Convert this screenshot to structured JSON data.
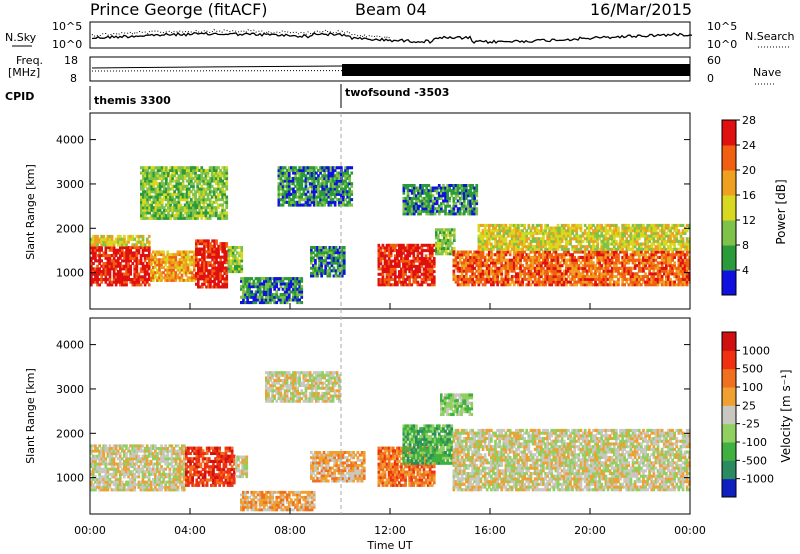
{
  "header": {
    "station": "Prince George (fitACF)",
    "beam": "Beam 04",
    "date": "16/Mar/2015"
  },
  "nsky_panel": {
    "left_label": "N.Sky",
    "left_ticks": [
      "10^5",
      "10^0"
    ],
    "right_ticks": [
      "10^5",
      "10^0"
    ],
    "right_label": "N.Search"
  },
  "freq_panel": {
    "left_label_1": "Freq.",
    "left_label_2": "[MHz]",
    "left_ticks": [
      "18",
      "8"
    ],
    "right_ticks": [
      "60",
      "0"
    ],
    "right_label": "Nave"
  },
  "cpid_panel": {
    "label": "CPID",
    "programs": [
      {
        "name": "themis 3300",
        "start_hour": 0
      },
      {
        "name": "twofsound -3503",
        "start_hour": 10
      }
    ]
  },
  "chart_data": [
    {
      "type": "heatmap",
      "title": "",
      "quantity": "Power",
      "xlabel": "",
      "ylabel": "Slant Range [km]",
      "x_range_hours": [
        0,
        24
      ],
      "ylim": [
        180,
        4600
      ],
      "y_ticks": [
        "1000",
        "2000",
        "3000",
        "4000"
      ],
      "colorbar_label": "Power [dB]",
      "colorbar_ticks": [
        "4",
        "8",
        "12",
        "16",
        "20",
        "24",
        "28"
      ],
      "colorbar_colors": [
        "#1010e0",
        "#2a9a3a",
        "#7fc24a",
        "#d8d820",
        "#f0a020",
        "#f06010",
        "#e01010"
      ],
      "regions": [
        {
          "x0": 0.0,
          "x1": 2.4,
          "y0": 700,
          "y1": 1600,
          "level": 6
        },
        {
          "x0": 0.0,
          "x1": 2.4,
          "y0": 1600,
          "y1": 1850,
          "level": 3
        },
        {
          "x0": 2.4,
          "x1": 4.2,
          "y0": 800,
          "y1": 1500,
          "level": 4
        },
        {
          "x0": 4.2,
          "x1": 5.5,
          "y0": 650,
          "y1": 1750,
          "level": 6
        },
        {
          "x0": 5.5,
          "x1": 6.1,
          "y0": 1000,
          "y1": 1600,
          "level": 2
        },
        {
          "x0": 6.0,
          "x1": 8.5,
          "y0": 300,
          "y1": 900,
          "level": 1
        },
        {
          "x0": 8.8,
          "x1": 10.2,
          "y0": 900,
          "y1": 1600,
          "level": 1
        },
        {
          "x0": 11.5,
          "x1": 13.8,
          "y0": 700,
          "y1": 1650,
          "level": 6
        },
        {
          "x0": 13.8,
          "x1": 14.6,
          "y0": 1400,
          "y1": 2000,
          "level": 2
        },
        {
          "x0": 14.5,
          "x1": 24.0,
          "y0": 700,
          "y1": 1500,
          "level": 5
        },
        {
          "x0": 15.5,
          "x1": 24.0,
          "y0": 1500,
          "y1": 2100,
          "level": 3
        },
        {
          "x0": 7.5,
          "x1": 10.5,
          "y0": 2500,
          "y1": 3400,
          "level": 1
        },
        {
          "x0": 2.0,
          "x1": 5.5,
          "y0": 2200,
          "y1": 3400,
          "level": 2
        },
        {
          "x0": 12.5,
          "x1": 15.5,
          "y0": 2300,
          "y1": 3000,
          "level": 1
        }
      ]
    },
    {
      "type": "heatmap",
      "title": "",
      "quantity": "Velocity",
      "xlabel": "Time UT",
      "ylabel": "Slant Range [km]",
      "x_range_hours": [
        0,
        24
      ],
      "ylim": [
        180,
        4600
      ],
      "y_ticks": [
        "1000",
        "2000",
        "3000",
        "4000"
      ],
      "x_ticks": [
        "00:00",
        "04:00",
        "08:00",
        "12:00",
        "16:00",
        "20:00",
        "00:00"
      ],
      "colorbar_label": "Velocity [m s⁻¹]",
      "colorbar_ticks": [
        "1000",
        "500",
        "100",
        "25",
        "-25",
        "-100",
        "-500",
        "-1000"
      ],
      "colorbar_colors": [
        "#1020c0",
        "#2a8a60",
        "#40b040",
        "#90d060",
        "#c8c8c0",
        "#f0a030",
        "#f07020",
        "#f03010",
        "#d01010"
      ],
      "regions": [
        {
          "x0": 0.0,
          "x1": 3.8,
          "y0": 700,
          "y1": 1750,
          "level": 4
        },
        {
          "x0": 3.8,
          "x1": 5.8,
          "y0": 800,
          "y1": 1700,
          "level": 7
        },
        {
          "x0": 5.8,
          "x1": 6.3,
          "y0": 1000,
          "y1": 1500,
          "level": 4
        },
        {
          "x0": 6.0,
          "x1": 9.0,
          "y0": 250,
          "y1": 700,
          "level": 5
        },
        {
          "x0": 7.0,
          "x1": 10.0,
          "y0": 2700,
          "y1": 3400,
          "level": 4
        },
        {
          "x0": 8.8,
          "x1": 11.0,
          "y0": 900,
          "y1": 1600,
          "level": 5
        },
        {
          "x0": 11.5,
          "x1": 13.8,
          "y0": 800,
          "y1": 1700,
          "level": 6
        },
        {
          "x0": 12.5,
          "x1": 14.5,
          "y0": 1300,
          "y1": 2200,
          "level": 2
        },
        {
          "x0": 14.5,
          "x1": 24.0,
          "y0": 700,
          "y1": 2100,
          "level": 4
        },
        {
          "x0": 14.0,
          "x1": 15.3,
          "y0": 2400,
          "y1": 2900,
          "level": 3
        }
      ]
    }
  ]
}
